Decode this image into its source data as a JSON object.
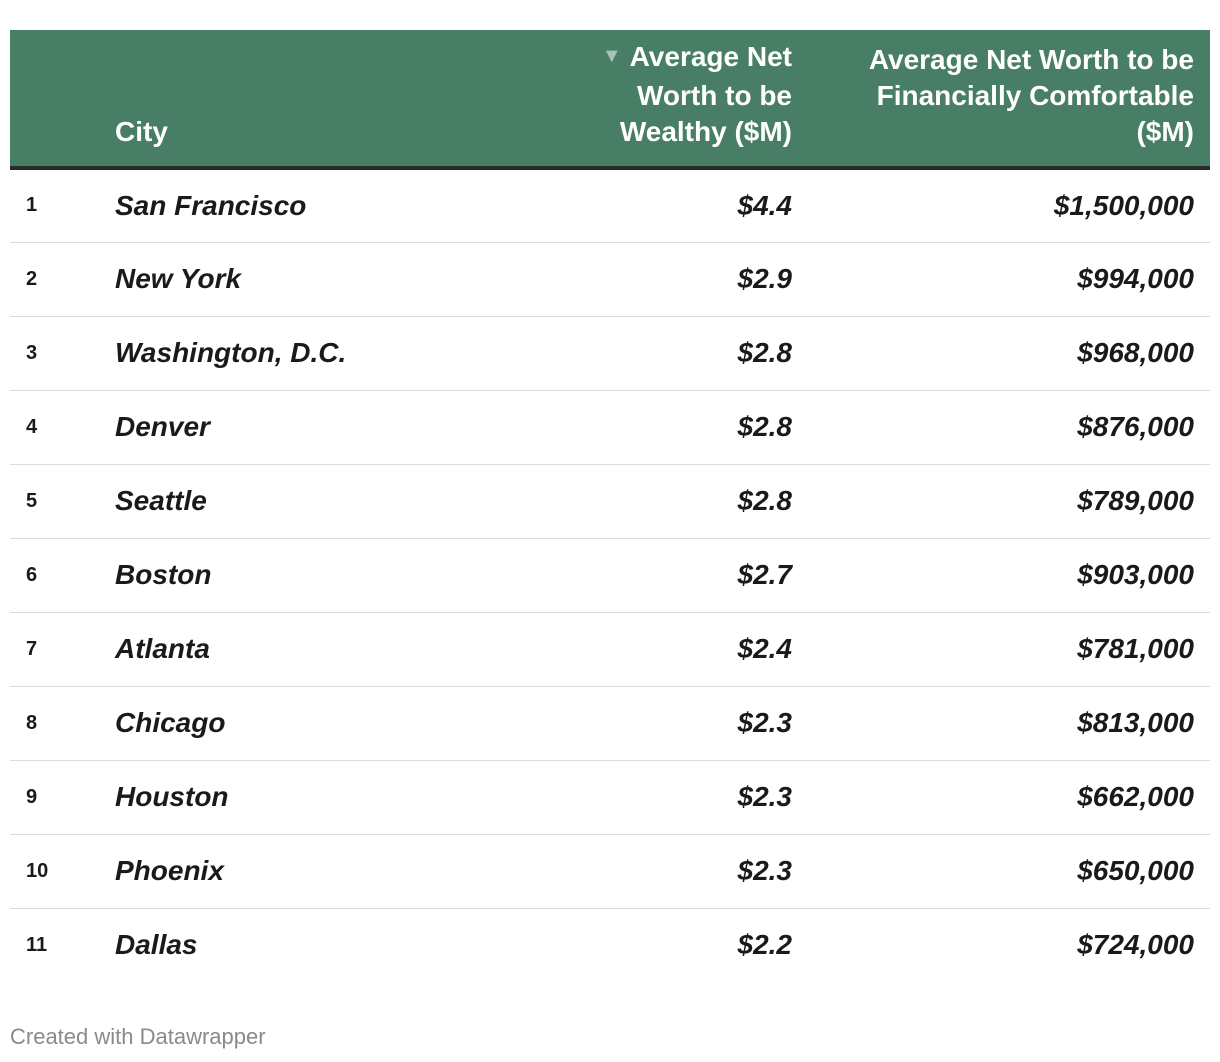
{
  "chart_data": {
    "type": "table",
    "columns": {
      "rank": "",
      "city": "City",
      "wealthy": "Average Net Worth to be Wealthy ($M)",
      "comfortable": "Average Net Worth to be Financially Comfortable ($M)"
    },
    "sorted_by": "wealthy",
    "sort_direction": "descending",
    "rows": [
      {
        "rank": "1",
        "city": "San Francisco",
        "wealthy": "$4.4",
        "comfortable": "$1,500,000"
      },
      {
        "rank": "2",
        "city": "New York",
        "wealthy": "$2.9",
        "comfortable": "$994,000"
      },
      {
        "rank": "3",
        "city": "Washington, D.C.",
        "wealthy": "$2.8",
        "comfortable": "$968,000"
      },
      {
        "rank": "4",
        "city": "Denver",
        "wealthy": "$2.8",
        "comfortable": "$876,000"
      },
      {
        "rank": "5",
        "city": "Seattle",
        "wealthy": "$2.8",
        "comfortable": "$789,000"
      },
      {
        "rank": "6",
        "city": "Boston",
        "wealthy": "$2.7",
        "comfortable": "$903,000"
      },
      {
        "rank": "7",
        "city": "Atlanta",
        "wealthy": "$2.4",
        "comfortable": "$781,000"
      },
      {
        "rank": "8",
        "city": "Chicago",
        "wealthy": "$2.3",
        "comfortable": "$813,000"
      },
      {
        "rank": "9",
        "city": "Houston",
        "wealthy": "$2.3",
        "comfortable": "$662,000"
      },
      {
        "rank": "10",
        "city": "Phoenix",
        "wealthy": "$2.3",
        "comfortable": "$650,000"
      },
      {
        "rank": "11",
        "city": "Dallas",
        "wealthy": "$2.2",
        "comfortable": "$724,000"
      }
    ]
  },
  "header": {
    "sort_icon": "triangle-down-icon",
    "city_label": "City",
    "wealthy_lines": [
      "Average Net",
      "Worth to be",
      "Wealthy ($M)"
    ],
    "comfort_lines": [
      "Average Net Worth to be",
      "Financially Comfortable",
      "($M)"
    ]
  },
  "footer": {
    "credit": "Created with Datawrapper"
  },
  "colors": {
    "header_bg": "#487e66",
    "header_text": "#ffffff",
    "sort_arrow": "#a7c2b5",
    "row_divider": "#dcdcdc",
    "footer_text": "#8a8a8a"
  }
}
